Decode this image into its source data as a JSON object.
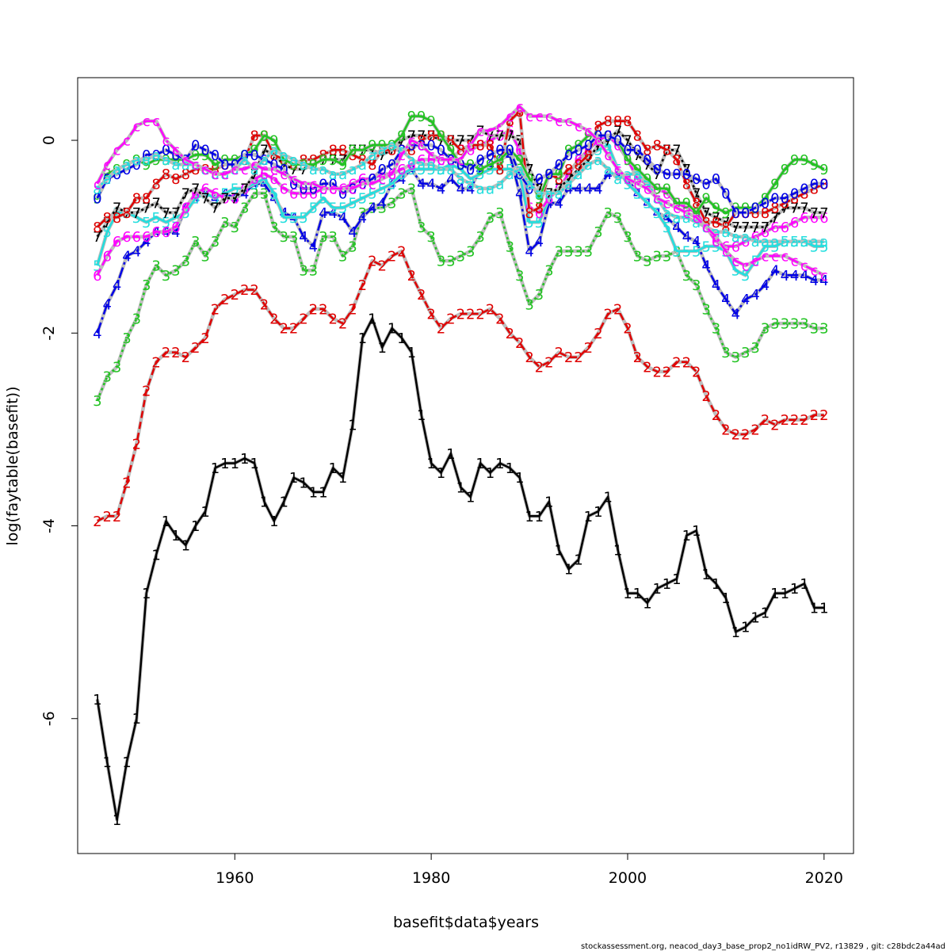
{
  "chart_data": {
    "type": "line",
    "xlabel": "basefit$data$years",
    "ylabel": "log(faytable(basefit))",
    "footer": "stockassessment.org, neacod_day3_base_prop2_no1idRW_PV2, r13829 , git: c28bdc2a44ad",
    "x_ticks": [
      1960,
      1980,
      2000,
      2020
    ],
    "y_ticks": [
      -6,
      -4,
      -2,
      0
    ],
    "xlim": [
      1944,
      2023
    ],
    "ylim": [
      -7.4,
      0.65
    ],
    "grid": false,
    "years": [
      1946,
      1947,
      1948,
      1949,
      1950,
      1951,
      1952,
      1953,
      1954,
      1955,
      1956,
      1957,
      1958,
      1959,
      1960,
      1961,
      1962,
      1963,
      1964,
      1965,
      1966,
      1967,
      1968,
      1969,
      1970,
      1971,
      1972,
      1973,
      1974,
      1975,
      1976,
      1977,
      1978,
      1979,
      1980,
      1981,
      1982,
      1983,
      1984,
      1985,
      1986,
      1987,
      1988,
      1989,
      1990,
      1991,
      1992,
      1993,
      1994,
      1995,
      1996,
      1997,
      1998,
      1999,
      2000,
      2001,
      2002,
      2003,
      2004,
      2005,
      2006,
      2007,
      2008,
      2009,
      2010,
      2011,
      2012,
      2013,
      2014,
      2015,
      2016,
      2017,
      2018,
      2019,
      2020
    ],
    "series": [
      {
        "name": "1",
        "color": "#000000",
        "dash": "",
        "values": [
          -5.8,
          -6.45,
          -7.05,
          -6.45,
          -6.0,
          -4.7,
          -4.3,
          -3.95,
          -4.1,
          -4.2,
          -4.0,
          -3.85,
          -3.4,
          -3.35,
          -3.35,
          -3.3,
          -3.35,
          -3.75,
          -3.95,
          -3.75,
          -3.5,
          -3.55,
          -3.65,
          -3.65,
          -3.4,
          -3.5,
          -2.95,
          -2.05,
          -1.85,
          -2.15,
          -1.95,
          -2.05,
          -2.2,
          -2.85,
          -3.35,
          -3.45,
          -3.25,
          -3.6,
          -3.7,
          -3.35,
          -3.45,
          -3.35,
          -3.4,
          -3.5,
          -3.9,
          -3.9,
          -3.75,
          -4.25,
          -4.45,
          -4.35,
          -3.9,
          -3.85,
          -3.7,
          -4.25,
          -4.7,
          -4.7,
          -4.8,
          -4.65,
          -4.6,
          -4.55,
          -4.1,
          -4.05,
          -4.5,
          -4.6,
          -4.75,
          -5.1,
          -5.05,
          -4.95,
          -4.9,
          -4.7,
          -4.7,
          -4.65,
          -4.6,
          -4.85,
          -4.85
        ]
      },
      {
        "name": "2",
        "color": "#df0000",
        "dash": "9,5",
        "values": [
          -3.95,
          -3.9,
          -3.9,
          -3.55,
          -3.15,
          -2.6,
          -2.3,
          -2.2,
          -2.2,
          -2.25,
          -2.15,
          -2.05,
          -1.75,
          -1.65,
          -1.6,
          -1.55,
          -1.55,
          -1.7,
          -1.85,
          -1.95,
          -1.95,
          -1.85,
          -1.75,
          -1.75,
          -1.85,
          -1.9,
          -1.75,
          -1.5,
          -1.25,
          -1.3,
          -1.2,
          -1.15,
          -1.4,
          -1.6,
          -1.8,
          -1.95,
          -1.85,
          -1.8,
          -1.8,
          -1.8,
          -1.75,
          -1.85,
          -2.0,
          -2.1,
          -2.25,
          -2.35,
          -2.3,
          -2.2,
          -2.25,
          -2.25,
          -2.15,
          -2.0,
          -1.8,
          -1.75,
          -1.95,
          -2.25,
          -2.35,
          -2.4,
          -2.4,
          -2.3,
          -2.3,
          -2.4,
          -2.65,
          -2.85,
          -3.0,
          -3.05,
          -3.05,
          -3.0,
          -2.9,
          -2.95,
          -2.9,
          -2.9,
          -2.9,
          -2.85,
          -2.85
        ]
      },
      {
        "name": "3",
        "color": "#22c322",
        "dash": "3,4",
        "values": [
          -2.7,
          -2.45,
          -2.35,
          -2.05,
          -1.85,
          -1.5,
          -1.3,
          -1.4,
          -1.35,
          -1.25,
          -1.05,
          -1.2,
          -1.05,
          -0.85,
          -0.9,
          -0.7,
          -0.55,
          -0.55,
          -0.9,
          -1.0,
          -1.0,
          -1.35,
          -1.35,
          -1.0,
          -1.0,
          -1.2,
          -1.1,
          -0.75,
          -0.7,
          -0.7,
          -0.65,
          -0.55,
          -0.5,
          -0.9,
          -1.0,
          -1.25,
          -1.25,
          -1.2,
          -1.15,
          -1.0,
          -0.8,
          -0.75,
          -1.1,
          -1.4,
          -1.7,
          -1.6,
          -1.35,
          -1.15,
          -1.15,
          -1.15,
          -1.15,
          -0.95,
          -0.75,
          -0.8,
          -1.0,
          -1.2,
          -1.25,
          -1.2,
          -1.2,
          -1.15,
          -1.4,
          -1.5,
          -1.75,
          -1.95,
          -2.2,
          -2.25,
          -2.2,
          -2.15,
          -1.95,
          -1.9,
          -1.9,
          -1.9,
          -1.9,
          -1.95,
          -1.95
        ]
      },
      {
        "name": "4",
        "color": "#0000e6",
        "dash": "14,4,3,4",
        "values": [
          -2.0,
          -1.7,
          -1.5,
          -1.2,
          -1.15,
          -1.05,
          -0.95,
          -0.95,
          -0.95,
          -0.7,
          -0.6,
          -0.55,
          -0.6,
          -0.55,
          -0.6,
          -0.55,
          -0.45,
          -0.45,
          -0.6,
          -0.75,
          -0.8,
          -1.0,
          -1.1,
          -0.75,
          -0.75,
          -0.8,
          -0.95,
          -0.8,
          -0.7,
          -0.65,
          -0.45,
          -0.4,
          -0.3,
          -0.45,
          -0.45,
          -0.5,
          -0.4,
          -0.5,
          -0.5,
          -0.3,
          -0.25,
          -0.2,
          -0.15,
          -0.55,
          -1.15,
          -1.05,
          -0.65,
          -0.65,
          -0.5,
          -0.5,
          -0.5,
          -0.5,
          -0.35,
          -0.35,
          -0.4,
          -0.55,
          -0.65,
          -0.75,
          -0.8,
          -0.9,
          -1.0,
          -1.05,
          -1.3,
          -1.5,
          -1.65,
          -1.8,
          -1.65,
          -1.6,
          -1.5,
          -1.35,
          -1.4,
          -1.4,
          -1.4,
          -1.45,
          -1.45
        ]
      },
      {
        "name": "5",
        "color": "#22dede",
        "dash": "",
        "values": [
          -1.3,
          -0.95,
          -0.75,
          -0.75,
          -0.8,
          -0.85,
          -0.8,
          -0.85,
          -0.8,
          -0.75,
          -0.6,
          -0.55,
          -0.6,
          -0.55,
          -0.5,
          -0.5,
          -0.45,
          -0.4,
          -0.55,
          -0.8,
          -0.8,
          -0.8,
          -0.7,
          -0.6,
          -0.7,
          -0.7,
          -0.65,
          -0.6,
          -0.55,
          -0.5,
          -0.45,
          -0.35,
          -0.3,
          -0.3,
          -0.3,
          -0.3,
          -0.25,
          -0.3,
          -0.4,
          -0.35,
          -0.3,
          -0.3,
          -0.3,
          -0.35,
          -0.85,
          -0.85,
          -0.6,
          -0.5,
          -0.35,
          -0.2,
          -0.15,
          -0.1,
          -0.05,
          -0.3,
          -0.45,
          -0.55,
          -0.65,
          -0.75,
          -0.9,
          -1.15,
          -1.15,
          -1.15,
          -1.1,
          -1.1,
          -1.15,
          -1.35,
          -1.4,
          -1.25,
          -1.1,
          -1.1,
          -1.05,
          -1.05,
          -1.05,
          -1.1,
          -1.1
        ]
      },
      {
        "name": "6",
        "color": "#ff00ff",
        "dash": "9,5",
        "values": [
          -1.4,
          -1.2,
          -1.05,
          -1.0,
          -1.0,
          -1.0,
          -0.95,
          -0.95,
          -0.9,
          -0.7,
          -0.55,
          -0.5,
          -0.55,
          -0.6,
          -0.6,
          -0.5,
          -0.4,
          -0.35,
          -0.4,
          -0.5,
          -0.55,
          -0.55,
          -0.55,
          -0.5,
          -0.5,
          -0.5,
          -0.45,
          -0.4,
          -0.4,
          -0.35,
          -0.35,
          -0.3,
          -0.25,
          -0.2,
          -0.2,
          -0.2,
          -0.2,
          -0.1,
          -0.1,
          -0.05,
          0.0,
          0.05,
          0.1,
          -0.1,
          -0.7,
          -0.75,
          -0.6,
          -0.5,
          -0.35,
          -0.2,
          -0.1,
          0.0,
          0.05,
          -0.05,
          -0.2,
          -0.4,
          -0.45,
          -0.5,
          -0.55,
          -0.65,
          -0.7,
          -0.75,
          -0.9,
          -1.05,
          -1.1,
          -1.1,
          -1.05,
          -1.0,
          -0.95,
          -0.9,
          -0.9,
          -0.85,
          -0.8,
          -0.8,
          -0.8
        ]
      },
      {
        "name": "7",
        "color": "#000000",
        "dash": "3,4",
        "values": [
          -1.0,
          -0.85,
          -0.7,
          -0.75,
          -0.75,
          -0.7,
          -0.65,
          -0.75,
          -0.75,
          -0.55,
          -0.5,
          -0.6,
          -0.7,
          -0.6,
          -0.6,
          -0.5,
          -0.35,
          -0.1,
          -0.15,
          -0.25,
          -0.3,
          -0.3,
          -0.25,
          -0.2,
          -0.2,
          -0.2,
          -0.1,
          -0.1,
          -0.1,
          -0.15,
          -0.1,
          0.0,
          0.05,
          0.05,
          0.05,
          0.0,
          0.0,
          0.0,
          0.0,
          0.1,
          0.05,
          0.05,
          0.05,
          0.0,
          -0.3,
          -0.5,
          -0.55,
          -0.5,
          -0.4,
          -0.3,
          -0.2,
          -0.05,
          0.0,
          0.1,
          0.0,
          -0.15,
          -0.25,
          -0.35,
          -0.1,
          -0.1,
          -0.3,
          -0.55,
          -0.75,
          -0.8,
          -0.85,
          -0.9,
          -0.9,
          -0.9,
          -0.9,
          -0.8,
          -0.7,
          -0.7,
          -0.7,
          -0.75,
          -0.75
        ]
      },
      {
        "name": "8",
        "color": "#df0000",
        "dash": "14,4,3,4",
        "values": [
          -0.9,
          -0.8,
          -0.8,
          -0.75,
          -0.6,
          -0.6,
          -0.45,
          -0.35,
          -0.4,
          -0.35,
          -0.3,
          -0.3,
          -0.3,
          -0.25,
          -0.25,
          -0.2,
          0.05,
          0.05,
          -0.15,
          -0.2,
          -0.25,
          -0.2,
          -0.2,
          -0.15,
          -0.1,
          -0.1,
          -0.15,
          -0.2,
          -0.25,
          -0.1,
          -0.1,
          -0.1,
          -0.1,
          0.0,
          0.05,
          0.05,
          0.0,
          -0.1,
          -0.05,
          -0.05,
          -0.05,
          -0.3,
          0.2,
          0.3,
          -0.75,
          -0.7,
          -0.35,
          -0.4,
          -0.3,
          -0.25,
          -0.15,
          0.15,
          0.2,
          0.2,
          0.2,
          0.05,
          -0.1,
          -0.05,
          -0.1,
          -0.2,
          -0.45,
          -0.65,
          -0.85,
          -0.85,
          -0.9,
          -0.75,
          -0.75,
          -0.75,
          -0.75,
          -0.7,
          -0.65,
          -0.6,
          -0.55,
          -0.5,
          -0.45
        ]
      },
      {
        "name": "9",
        "color": "#22c322",
        "dash": "",
        "values": [
          -0.6,
          -0.35,
          -0.3,
          -0.25,
          -0.2,
          -0.25,
          -0.2,
          -0.2,
          -0.2,
          -0.2,
          -0.15,
          -0.15,
          -0.25,
          -0.2,
          -0.2,
          -0.15,
          -0.1,
          0.05,
          0.0,
          -0.2,
          -0.25,
          -0.25,
          -0.25,
          -0.2,
          -0.2,
          -0.25,
          -0.1,
          -0.1,
          -0.05,
          -0.05,
          -0.05,
          0.05,
          0.25,
          0.25,
          0.2,
          0.05,
          -0.1,
          -0.25,
          -0.25,
          -0.3,
          -0.25,
          -0.2,
          -0.1,
          -0.2,
          -0.4,
          -0.6,
          -0.35,
          -0.35,
          -0.1,
          -0.05,
          0.05,
          0.05,
          0.05,
          0.0,
          -0.2,
          -0.3,
          -0.4,
          -0.5,
          -0.5,
          -0.65,
          -0.65,
          -0.75,
          -0.6,
          -0.7,
          -0.75,
          -0.7,
          -0.7,
          -0.7,
          -0.6,
          -0.45,
          -0.3,
          -0.2,
          -0.2,
          -0.25,
          -0.3
        ]
      },
      {
        "name": "0",
        "color": "#0000e6",
        "dash": "9,5",
        "values": [
          -0.6,
          -0.4,
          -0.35,
          -0.3,
          -0.25,
          -0.15,
          -0.15,
          -0.1,
          -0.15,
          -0.2,
          -0.05,
          -0.1,
          -0.15,
          -0.25,
          -0.25,
          -0.15,
          -0.15,
          -0.2,
          -0.25,
          -0.3,
          -0.45,
          -0.5,
          -0.5,
          -0.45,
          -0.45,
          -0.55,
          -0.5,
          -0.45,
          -0.4,
          -0.3,
          -0.25,
          -0.1,
          -0.05,
          -0.05,
          -0.05,
          -0.1,
          -0.2,
          -0.25,
          -0.3,
          -0.2,
          -0.15,
          -0.1,
          -0.1,
          -0.35,
          -0.5,
          -0.4,
          -0.35,
          -0.25,
          -0.15,
          -0.1,
          -0.05,
          0.05,
          0.05,
          0.0,
          -0.1,
          -0.1,
          -0.2,
          -0.3,
          -0.35,
          -0.35,
          -0.35,
          -0.4,
          -0.45,
          -0.4,
          -0.55,
          -0.75,
          -0.75,
          -0.7,
          -0.65,
          -0.6,
          -0.6,
          -0.55,
          -0.5,
          -0.45,
          -0.45
        ]
      },
      {
        "name": "a",
        "color": "#22dede",
        "dash": "3,4",
        "values": [
          -0.5,
          -0.4,
          -0.3,
          -0.25,
          -0.2,
          -0.2,
          -0.15,
          -0.2,
          -0.25,
          -0.25,
          -0.25,
          -0.3,
          -0.35,
          -0.35,
          -0.3,
          -0.2,
          -0.3,
          -0.2,
          -0.1,
          -0.15,
          -0.2,
          -0.25,
          -0.3,
          -0.3,
          -0.35,
          -0.35,
          -0.3,
          -0.25,
          -0.15,
          -0.1,
          -0.05,
          -0.1,
          -0.2,
          -0.25,
          -0.25,
          -0.3,
          -0.3,
          -0.4,
          -0.45,
          -0.5,
          -0.5,
          -0.45,
          -0.35,
          -0.3,
          -0.45,
          -0.55,
          -0.55,
          -0.55,
          -0.45,
          -0.35,
          -0.25,
          -0.2,
          -0.3,
          -0.4,
          -0.35,
          -0.35,
          -0.45,
          -0.6,
          -0.75,
          -0.8,
          -0.8,
          -0.85,
          -0.9,
          -0.95,
          -0.95,
          -1.0,
          -1.0,
          -1.05,
          -1.05,
          -1.05,
          -1.05,
          -1.05,
          -1.05,
          -1.05,
          -1.05
        ]
      },
      {
        "name": "c",
        "color": "#ff00ff",
        "dash": "14,4,3,4",
        "values": [
          -0.45,
          -0.25,
          -0.1,
          0.0,
          0.15,
          0.2,
          0.2,
          0.0,
          -0.1,
          -0.2,
          -0.25,
          -0.3,
          -0.35,
          -0.35,
          -0.3,
          -0.3,
          -0.25,
          -0.3,
          -0.3,
          -0.35,
          -0.4,
          -0.45,
          -0.45,
          -0.5,
          -0.5,
          -0.5,
          -0.5,
          -0.45,
          -0.45,
          -0.4,
          -0.35,
          -0.15,
          0.0,
          -0.05,
          -0.15,
          -0.2,
          -0.2,
          -0.2,
          -0.05,
          0.1,
          0.1,
          0.15,
          0.25,
          0.35,
          0.25,
          0.25,
          0.25,
          0.2,
          0.2,
          0.15,
          0.1,
          0.0,
          -0.15,
          -0.3,
          -0.4,
          -0.45,
          -0.5,
          -0.6,
          -0.65,
          -0.7,
          -0.75,
          -0.8,
          -0.9,
          -1.0,
          -1.15,
          -1.25,
          -1.3,
          -1.25,
          -1.2,
          -1.2,
          -1.2,
          -1.25,
          -1.3,
          -1.35,
          -1.4
        ]
      }
    ]
  }
}
